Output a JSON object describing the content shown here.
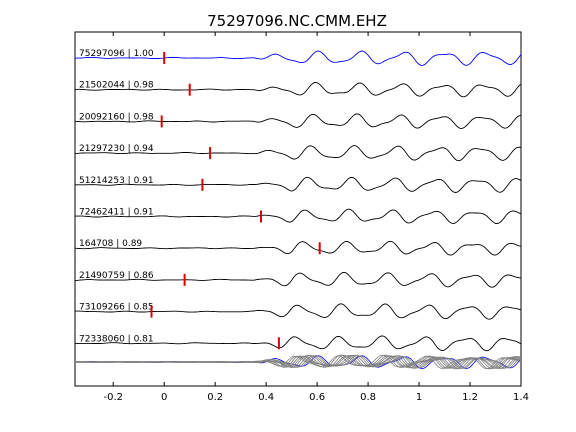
{
  "chart_data": {
    "type": "line",
    "title": "75297096.NC.CMM.EHZ",
    "xlabel": "",
    "ylabel": "",
    "xlim": [
      -0.35,
      1.4
    ],
    "xticks": [
      -0.2,
      0,
      0.2,
      0.4,
      0.6,
      0.8,
      1,
      1.2,
      1.4
    ],
    "xtick_labels": [
      "-0.2",
      "0",
      "0.2",
      "0.4",
      "0.6",
      "0.8",
      "1",
      "1.2",
      "1.4"
    ],
    "grid": false,
    "colors": {
      "reference": "#0000ff",
      "trace": "#000000",
      "stack": "#808080",
      "pick": "#dd0000"
    },
    "series": [
      {
        "name": "75297096 | 1.00",
        "pick": 0.0,
        "color": "#0000ff"
      },
      {
        "name": "21502044 | 0.98",
        "pick": 0.1,
        "color": "#000000"
      },
      {
        "name": "20092160 | 0.98",
        "pick": -0.01,
        "color": "#000000"
      },
      {
        "name": "21297230 | 0.94",
        "pick": 0.18,
        "color": "#000000"
      },
      {
        "name": "51214253 | 0.91",
        "pick": 0.15,
        "color": "#000000"
      },
      {
        "name": "72462411 | 0.91",
        "pick": 0.38,
        "color": "#000000"
      },
      {
        "name": "164708 | 0.89",
        "pick": 0.61,
        "color": "#000000"
      },
      {
        "name": "21490759 | 0.86",
        "pick": 0.08,
        "color": "#000000"
      },
      {
        "name": "73109266 | 0.85",
        "pick": -0.05,
        "color": "#000000"
      },
      {
        "name": "72338060 | 0.81",
        "pick": 0.45,
        "color": "#000000"
      }
    ]
  }
}
